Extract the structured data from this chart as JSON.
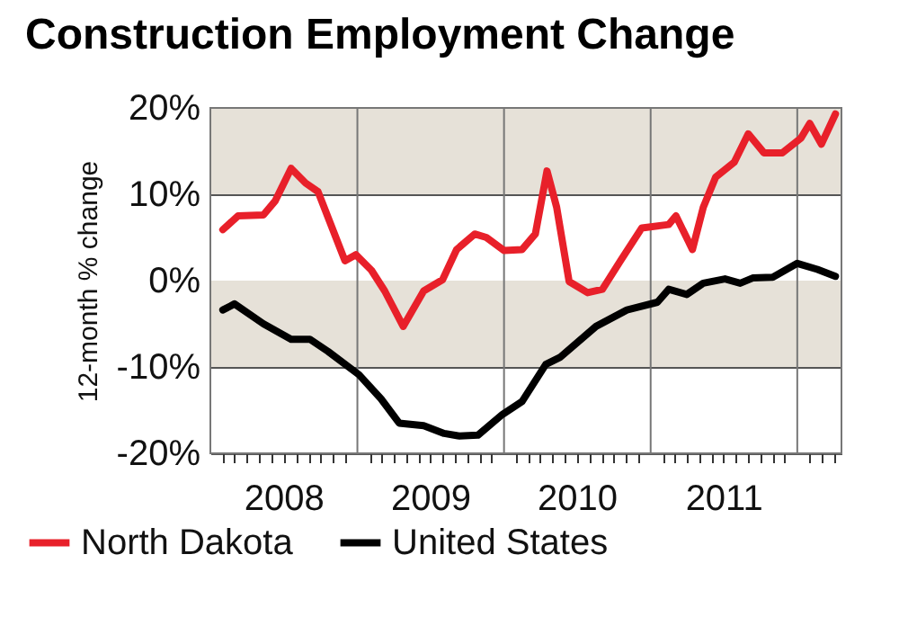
{
  "chart_data": {
    "type": "line",
    "title": "Construction Employment Change",
    "ylabel": "12-month % change",
    "xlim": [
      "2008-01-01",
      "2012-04-20"
    ],
    "xticks": [
      {
        "value": "2008-02-01",
        "label": null
      },
      {
        "value": "2008-03-01",
        "label": null
      },
      {
        "value": "2008-04-01",
        "label": null
      },
      {
        "value": "2008-05-01",
        "label": null
      },
      {
        "value": "2008-06-01",
        "label": null
      },
      {
        "value": "2008-07-01",
        "label": "2008"
      },
      {
        "value": "2008-08-01",
        "label": null
      },
      {
        "value": "2008-09-01",
        "label": null
      },
      {
        "value": "2008-10-01",
        "label": null
      },
      {
        "value": "2008-11-01",
        "label": null
      },
      {
        "value": "2008-12-01",
        "label": null
      },
      {
        "value": "2009-02-01",
        "label": null
      },
      {
        "value": "2009-03-01",
        "label": null
      },
      {
        "value": "2009-04-01",
        "label": null
      },
      {
        "value": "2009-05-01",
        "label": null
      },
      {
        "value": "2009-06-01",
        "label": null
      },
      {
        "value": "2009-07-01",
        "label": "2009"
      },
      {
        "value": "2009-08-01",
        "label": null
      },
      {
        "value": "2009-09-01",
        "label": null
      },
      {
        "value": "2009-10-01",
        "label": null
      },
      {
        "value": "2009-11-01",
        "label": null
      },
      {
        "value": "2009-12-01",
        "label": null
      },
      {
        "value": "2010-02-01",
        "label": null
      },
      {
        "value": "2010-03-01",
        "label": null
      },
      {
        "value": "2010-04-01",
        "label": null
      },
      {
        "value": "2010-05-01",
        "label": null
      },
      {
        "value": "2010-06-01",
        "label": null
      },
      {
        "value": "2010-07-01",
        "label": "2010"
      },
      {
        "value": "2010-08-01",
        "label": null
      },
      {
        "value": "2010-09-01",
        "label": null
      },
      {
        "value": "2010-10-01",
        "label": null
      },
      {
        "value": "2010-11-01",
        "label": null
      },
      {
        "value": "2010-12-01",
        "label": null
      },
      {
        "value": "2011-02-01",
        "label": null
      },
      {
        "value": "2011-03-01",
        "label": null
      },
      {
        "value": "2011-04-01",
        "label": null
      },
      {
        "value": "2011-05-01",
        "label": null
      },
      {
        "value": "2011-06-01",
        "label": null
      },
      {
        "value": "2011-07-01",
        "label": "2011"
      },
      {
        "value": "2011-08-01",
        "label": null
      },
      {
        "value": "2011-09-01",
        "label": null
      },
      {
        "value": "2011-10-01",
        "label": null
      },
      {
        "value": "2011-11-01",
        "label": null
      },
      {
        "value": "2011-12-01",
        "label": null
      },
      {
        "value": "2012-02-01",
        "label": null
      },
      {
        "value": "2012-03-01",
        "label": null
      },
      {
        "value": "2012-04-01",
        "label": null
      }
    ],
    "ylim": [
      -20,
      20
    ],
    "yticks": [
      {
        "value": -20,
        "label": "-20%"
      },
      {
        "value": -10,
        "label": "-10%"
      },
      {
        "value": 0,
        "label": "0%"
      },
      {
        "value": 10,
        "label": "10%"
      },
      {
        "value": 20,
        "label": "20%"
      }
    ],
    "grid": "y",
    "legend": "bottom",
    "bands": [
      {
        "axis": "y",
        "from": 10,
        "to": 20,
        "label": null,
        "color": "#e6e1d8"
      },
      {
        "axis": "y",
        "from": -10,
        "to": 0,
        "label": null,
        "color": "#e6e1d8"
      }
    ],
    "ref_lines": [
      {
        "axis": "x",
        "value": "2009-01-01",
        "label": null,
        "color": "#777777"
      },
      {
        "axis": "x",
        "value": "2010-01-01",
        "label": null,
        "color": "#777777"
      },
      {
        "axis": "x",
        "value": "2011-01-01",
        "label": null,
        "color": "#777777"
      },
      {
        "axis": "x",
        "value": "2012-01-01",
        "label": null,
        "color": "#777777"
      }
    ],
    "series": [
      {
        "name": "North Dakota",
        "color": "#e8202a",
        "x": [
          "2008-02-01",
          "2008-03-10",
          "2008-05-12",
          "2008-06-10",
          "2008-07-20",
          "2008-08-25",
          "2008-09-25",
          "2008-12-01",
          "2008-12-28",
          "2009-02-05",
          "2009-03-10",
          "2009-04-25",
          "2009-06-15",
          "2009-08-01",
          "2009-09-05",
          "2009-10-20",
          "2009-11-18",
          "2010-01-01",
          "2010-02-15",
          "2010-03-20",
          "2010-04-18",
          "2010-05-12",
          "2010-06-12",
          "2010-07-28",
          "2010-09-03",
          "2010-10-18",
          "2010-12-10",
          "2011-02-15",
          "2011-03-05",
          "2011-04-15",
          "2011-05-12",
          "2011-06-12",
          "2011-07-28",
          "2011-09-01",
          "2011-10-10",
          "2011-11-25",
          "2012-01-10",
          "2012-02-01",
          "2012-03-01",
          "2012-04-05"
        ],
        "values": [
          5.9,
          7.5,
          7.6,
          9.2,
          13.0,
          11.3,
          10.3,
          2.3,
          3.0,
          1.2,
          -1.2,
          -5.3,
          -1.2,
          0.1,
          3.6,
          5.4,
          5.0,
          3.5,
          3.6,
          5.4,
          12.7,
          8.5,
          -0.1,
          -1.4,
          -1.0,
          2.3,
          6.1,
          6.5,
          7.5,
          3.6,
          8.5,
          12.0,
          13.7,
          17.0,
          14.8,
          14.8,
          16.5,
          18.2,
          15.8,
          19.3
        ]
      },
      {
        "name": "United States",
        "color": "#000000",
        "x": [
          "2008-02-01",
          "2008-03-01",
          "2008-05-12",
          "2008-07-20",
          "2008-09-05",
          "2008-10-20",
          "2009-01-05",
          "2009-03-01",
          "2009-04-15",
          "2009-06-15",
          "2009-08-05",
          "2009-09-12",
          "2009-10-28",
          "2009-12-28",
          "2010-02-15",
          "2010-04-15",
          "2010-05-20",
          "2010-08-18",
          "2010-11-03",
          "2011-01-18",
          "2011-02-15",
          "2011-04-01",
          "2011-05-12",
          "2011-07-05",
          "2011-08-12",
          "2011-09-12",
          "2011-11-01",
          "2012-01-01",
          "2012-02-20",
          "2012-04-05"
        ],
        "values": [
          -3.4,
          -2.7,
          -5.0,
          -6.8,
          -6.8,
          -8.2,
          -10.9,
          -13.7,
          -16.5,
          -16.8,
          -17.7,
          -18.0,
          -17.9,
          -15.5,
          -14.0,
          -9.7,
          -8.9,
          -5.3,
          -3.4,
          -2.5,
          -1.0,
          -1.6,
          -0.3,
          0.2,
          -0.3,
          0.3,
          0.4,
          2.0,
          1.3,
          0.5
        ]
      }
    ]
  }
}
